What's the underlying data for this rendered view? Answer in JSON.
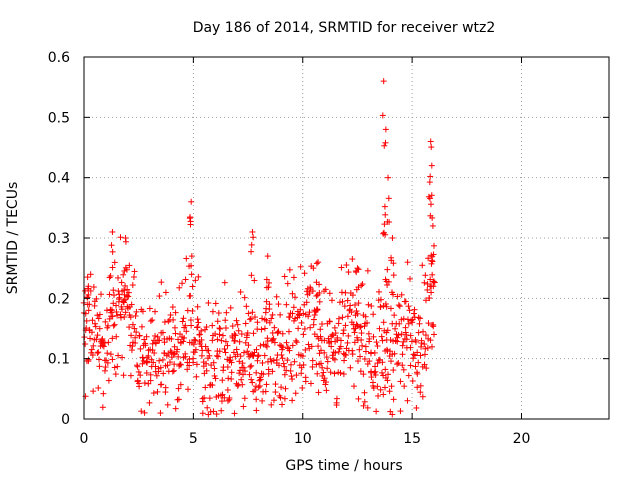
{
  "chart_data": {
    "type": "scatter",
    "title": "Day 186 of 2014, SRMTID for receiver wtz2",
    "xlabel": "GPS time / hours",
    "ylabel": "SRMTID / TECUs",
    "xlim": [
      0,
      24
    ],
    "ylim": [
      0,
      0.6
    ],
    "xticks": [
      "0",
      "5",
      "10",
      "15",
      "20"
    ],
    "xtick_values": [
      0,
      5,
      10,
      15,
      20
    ],
    "yticks": [
      "0",
      "0.1",
      "0.2",
      "0.3",
      "0.4",
      "0.5",
      "0.6"
    ],
    "ytick_values": [
      0,
      0.1,
      0.2,
      0.3,
      0.4,
      0.5,
      0.6
    ],
    "grid": true,
    "marker": "+",
    "color": "#ff0000",
    "series": [
      {
        "name": "wtz2",
        "x_range": [
          0,
          16.0
        ],
        "x_step": 0.05,
        "baseline": [
          [
            0.0,
            0.14
          ],
          [
            0.5,
            0.15
          ],
          [
            1.0,
            0.13
          ],
          [
            1.5,
            0.17
          ],
          [
            2.0,
            0.18
          ],
          [
            2.5,
            0.12
          ],
          [
            3.0,
            0.11
          ],
          [
            3.5,
            0.12
          ],
          [
            4.0,
            0.11
          ],
          [
            4.5,
            0.13
          ],
          [
            5.0,
            0.16
          ],
          [
            5.5,
            0.1
          ],
          [
            6.0,
            0.09
          ],
          [
            6.5,
            0.1
          ],
          [
            7.0,
            0.1
          ],
          [
            7.5,
            0.11
          ],
          [
            8.0,
            0.09
          ],
          [
            8.5,
            0.11
          ],
          [
            9.0,
            0.13
          ],
          [
            9.5,
            0.14
          ],
          [
            10.0,
            0.15
          ],
          [
            10.5,
            0.16
          ],
          [
            11.0,
            0.13
          ],
          [
            11.5,
            0.12
          ],
          [
            12.0,
            0.14
          ],
          [
            12.5,
            0.15
          ],
          [
            13.0,
            0.13
          ],
          [
            13.5,
            0.11
          ],
          [
            14.0,
            0.12
          ],
          [
            14.5,
            0.13
          ],
          [
            15.0,
            0.15
          ],
          [
            15.5,
            0.14
          ],
          [
            16.0,
            0.2
          ]
        ],
        "spikes": [
          [
            0.2,
            0.22
          ],
          [
            1.3,
            0.31
          ],
          [
            1.9,
            0.3
          ],
          [
            4.9,
            0.36
          ],
          [
            7.7,
            0.31
          ],
          [
            8.4,
            0.27
          ],
          [
            10.7,
            0.26
          ],
          [
            12.5,
            0.25
          ],
          [
            13.7,
            0.56
          ],
          [
            13.8,
            0.48
          ],
          [
            13.9,
            0.4
          ],
          [
            14.1,
            0.3
          ],
          [
            15.85,
            0.46
          ],
          [
            15.9,
            0.42
          ],
          [
            15.95,
            0.32
          ]
        ],
        "spread": 0.1,
        "seed": 186
      }
    ]
  }
}
